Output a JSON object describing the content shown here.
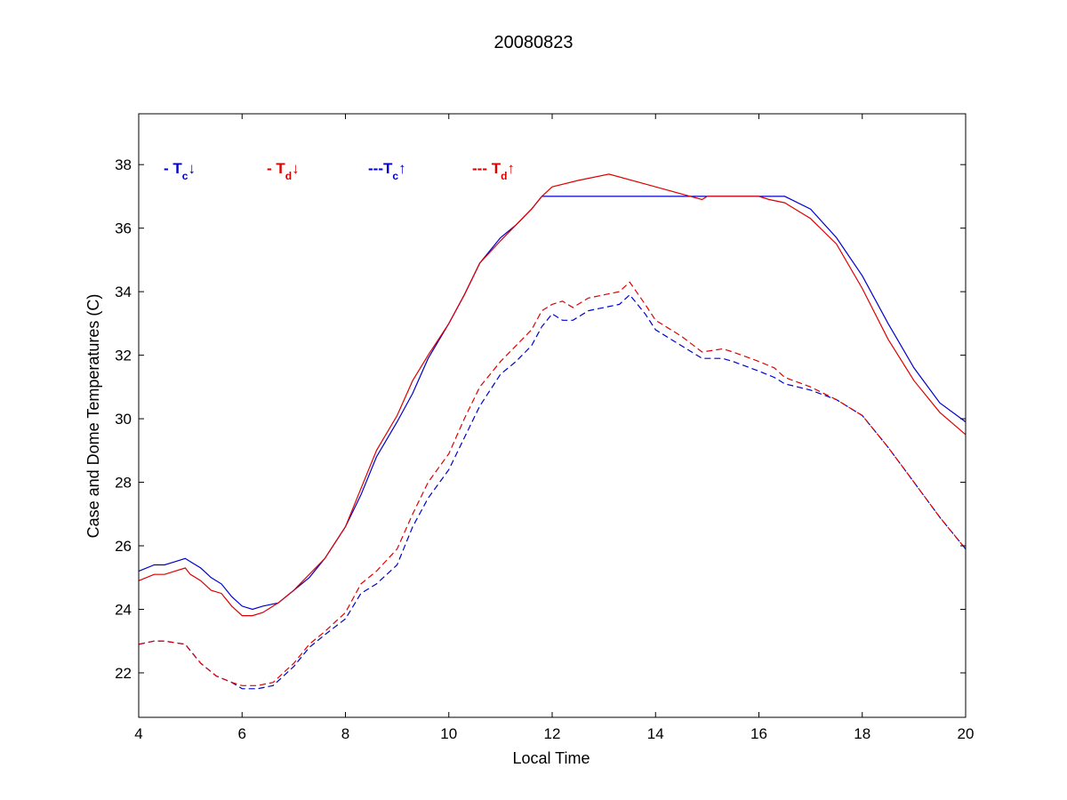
{
  "chart_data": {
    "type": "line",
    "title": "20080823",
    "xlabel": "Local Time",
    "ylabel": "Case and Dome Temperatures (C)",
    "xlim": [
      4,
      20
    ],
    "ylim": [
      20.6,
      39.6
    ],
    "xticks": [
      4,
      6,
      8,
      10,
      12,
      14,
      16,
      18,
      20
    ],
    "yticks": [
      22,
      24,
      26,
      28,
      30,
      32,
      34,
      36,
      38
    ],
    "grid": false,
    "legend_position": "top-left inside plot",
    "legend": [
      {
        "prefix": "- T",
        "sub": "c",
        "arrow": "↓",
        "color": "#0000cc"
      },
      {
        "prefix": "- T",
        "sub": "d",
        "arrow": "↓",
        "color": "#dd0000"
      },
      {
        "prefix": "---T",
        "sub": "c",
        "arrow": "↑",
        "color": "#0000cc"
      },
      {
        "prefix": "--- T",
        "sub": "d",
        "arrow": "↑",
        "color": "#dd0000"
      }
    ],
    "series": [
      {
        "color": "#0000cc",
        "dash": false,
        "x": [
          4.0,
          4.3,
          4.5,
          4.7,
          4.9,
          5.0,
          5.2,
          5.4,
          5.6,
          5.8,
          6.0,
          6.2,
          6.4,
          6.7,
          7.0,
          7.3,
          7.6,
          8.0,
          8.3,
          8.6,
          9.0,
          9.3,
          9.6,
          10.0,
          10.3,
          10.6,
          11.0,
          11.3,
          11.6,
          11.8,
          12.0,
          13.0,
          14.0,
          15.0,
          15.5,
          16.0,
          16.5,
          17.0,
          17.5,
          18.0,
          18.5,
          19.0,
          19.5,
          20.0
        ],
        "y": [
          25.2,
          25.4,
          25.4,
          25.5,
          25.6,
          25.5,
          25.3,
          25.0,
          24.8,
          24.4,
          24.1,
          24.0,
          24.1,
          24.2,
          24.6,
          25.0,
          25.6,
          26.6,
          27.6,
          28.8,
          29.9,
          30.8,
          31.9,
          33.0,
          33.9,
          34.9,
          35.7,
          36.1,
          36.6,
          37.0,
          37.0,
          37.0,
          37.0,
          37.0,
          37.0,
          37.0,
          37.0,
          36.6,
          35.7,
          34.5,
          33.0,
          31.6,
          30.5,
          29.9
        ]
      },
      {
        "color": "#dd0000",
        "dash": false,
        "x": [
          4.0,
          4.3,
          4.5,
          4.7,
          4.9,
          5.0,
          5.2,
          5.4,
          5.6,
          5.8,
          6.0,
          6.2,
          6.4,
          6.7,
          7.0,
          7.3,
          7.6,
          8.0,
          8.3,
          8.6,
          9.0,
          9.3,
          9.6,
          10.0,
          10.3,
          10.6,
          11.0,
          11.3,
          11.6,
          11.8,
          12.0,
          12.5,
          13.1,
          14.0,
          14.9,
          15.0,
          15.5,
          16.0,
          16.2,
          16.5,
          17.0,
          17.5,
          18.0,
          18.5,
          19.0,
          19.5,
          20.0
        ],
        "y": [
          24.9,
          25.1,
          25.1,
          25.2,
          25.3,
          25.1,
          24.9,
          24.6,
          24.5,
          24.1,
          23.8,
          23.8,
          23.9,
          24.2,
          24.6,
          25.1,
          25.6,
          26.6,
          27.8,
          29.0,
          30.1,
          31.2,
          32.0,
          33.0,
          33.9,
          34.9,
          35.6,
          36.1,
          36.6,
          37.0,
          37.3,
          37.5,
          37.7,
          37.3,
          36.9,
          37.0,
          37.0,
          37.0,
          36.9,
          36.8,
          36.3,
          35.5,
          34.1,
          32.5,
          31.2,
          30.2,
          29.5
        ]
      },
      {
        "color": "#0000cc",
        "dash": true,
        "x": [
          4.0,
          4.3,
          4.5,
          4.9,
          5.0,
          5.2,
          5.5,
          5.8,
          6.0,
          6.3,
          6.6,
          7.0,
          7.3,
          7.6,
          8.0,
          8.3,
          8.6,
          9.0,
          9.3,
          9.6,
          10.0,
          10.3,
          10.6,
          11.0,
          11.3,
          11.6,
          11.8,
          12.0,
          12.2,
          12.4,
          12.7,
          13.0,
          13.3,
          13.5,
          13.8,
          14.0,
          14.5,
          14.9,
          15.3,
          15.5,
          16.0,
          16.3,
          16.5,
          17.0,
          17.5,
          18.0,
          18.5,
          19.0,
          19.5,
          20.0
        ],
        "y": [
          22.9,
          23.0,
          23.0,
          22.9,
          22.7,
          22.3,
          21.9,
          21.7,
          21.5,
          21.5,
          21.6,
          22.2,
          22.8,
          23.2,
          23.7,
          24.5,
          24.8,
          25.4,
          26.6,
          27.5,
          28.4,
          29.4,
          30.4,
          31.4,
          31.8,
          32.3,
          32.9,
          33.3,
          33.1,
          33.1,
          33.4,
          33.5,
          33.6,
          33.9,
          33.3,
          32.8,
          32.3,
          31.9,
          31.9,
          31.8,
          31.5,
          31.3,
          31.1,
          30.9,
          30.6,
          30.1,
          29.1,
          28.0,
          26.9,
          25.9
        ]
      },
      {
        "color": "#dd0000",
        "dash": true,
        "x": [
          4.0,
          4.3,
          4.5,
          4.9,
          5.0,
          5.2,
          5.5,
          5.8,
          6.0,
          6.3,
          6.6,
          7.0,
          7.3,
          7.6,
          8.0,
          8.3,
          8.6,
          9.0,
          9.3,
          9.6,
          10.0,
          10.3,
          10.6,
          11.0,
          11.3,
          11.6,
          11.8,
          12.0,
          12.2,
          12.4,
          12.7,
          13.0,
          13.3,
          13.5,
          13.8,
          14.0,
          14.5,
          14.9,
          15.3,
          15.5,
          16.0,
          16.3,
          16.5,
          17.0,
          17.5,
          18.0,
          18.5,
          19.0,
          19.5,
          20.0
        ],
        "y": [
          22.9,
          23.0,
          23.0,
          22.9,
          22.7,
          22.3,
          21.9,
          21.7,
          21.6,
          21.6,
          21.7,
          22.3,
          22.9,
          23.3,
          23.9,
          24.8,
          25.2,
          25.9,
          27.0,
          28.0,
          28.9,
          30.0,
          31.0,
          31.8,
          32.3,
          32.8,
          33.4,
          33.6,
          33.7,
          33.5,
          33.8,
          33.9,
          34.0,
          34.3,
          33.6,
          33.1,
          32.6,
          32.1,
          32.2,
          32.1,
          31.8,
          31.6,
          31.3,
          31.0,
          30.6,
          30.1,
          29.1,
          28.0,
          26.9,
          25.9
        ]
      }
    ]
  }
}
